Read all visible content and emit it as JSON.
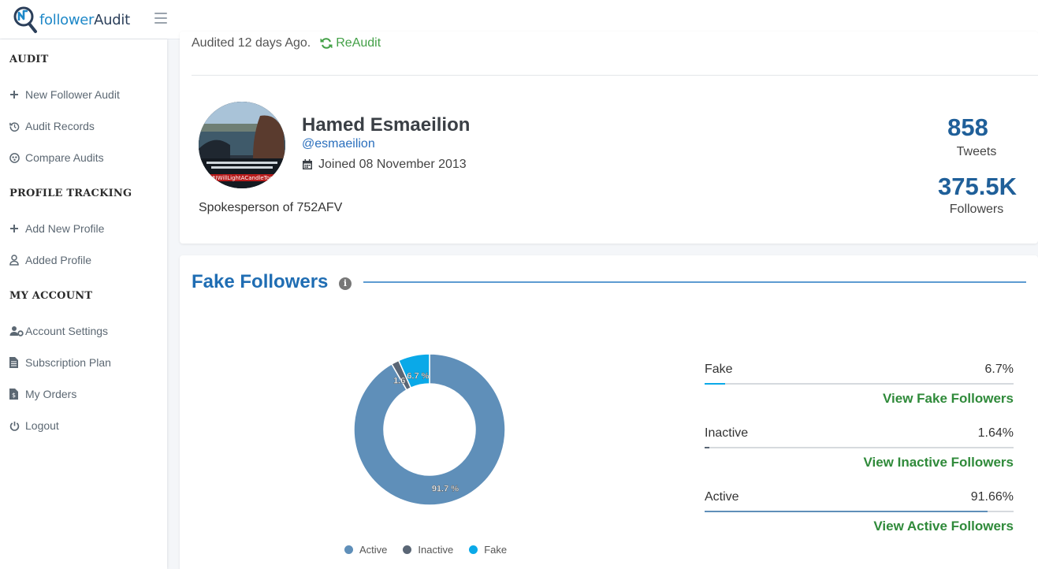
{
  "header": {
    "logo_part1": "follower",
    "logo_part2": "Audit"
  },
  "sidebar": {
    "sections": [
      {
        "heading": "AUDIT",
        "items": [
          {
            "label": "New Follower Audit",
            "icon": "plus-icon"
          },
          {
            "label": "Audit Records",
            "icon": "history-icon"
          },
          {
            "label": "Compare Audits",
            "icon": "compare-icon"
          }
        ]
      },
      {
        "heading": "PROFILE TRACKING",
        "items": [
          {
            "label": "Add New Profile",
            "icon": "plus-icon"
          },
          {
            "label": "Added Profile",
            "icon": "user-icon"
          }
        ]
      },
      {
        "heading": "MY ACCOUNT",
        "items": [
          {
            "label": "Account Settings",
            "icon": "user-gear-icon"
          },
          {
            "label": "Subscription Plan",
            "icon": "document-icon"
          },
          {
            "label": "My Orders",
            "icon": "receipt-icon"
          },
          {
            "label": "Logout",
            "icon": "power-icon"
          }
        ]
      }
    ]
  },
  "audit_status": {
    "text": "Audited 12 days Ago.",
    "reaudit_label": "ReAudit"
  },
  "profile": {
    "name": "Hamed Esmaeilion",
    "handle": "@esmaeilion",
    "joined": "Joined 08 November 2013",
    "bio": "Spokesperson of 752AFV",
    "avatar_caption": "#IWillLightACandleToo",
    "tweets_value": "858",
    "tweets_label": "Tweets",
    "followers_value": "375.5K",
    "followers_label": "Followers"
  },
  "fake_followers": {
    "title": "Fake Followers",
    "info_glyph": "i",
    "metrics": [
      {
        "label": "Fake",
        "value": "6.7%",
        "link": "View Fake Followers",
        "fraction": 0.067,
        "color": "#0aa9e8"
      },
      {
        "label": "Inactive",
        "value": "1.64%",
        "link": "View Inactive Followers",
        "fraction": 0.0164,
        "color": "#5a6675"
      },
      {
        "label": "Active",
        "value": "91.66%",
        "link": "View Active Followers",
        "fraction": 0.9166,
        "color": "#5f8fb9"
      }
    ]
  },
  "chart_data": {
    "type": "pie",
    "donut": true,
    "title": "",
    "categories": [
      "Active",
      "Inactive",
      "Fake"
    ],
    "values": [
      91.66,
      1.64,
      6.7
    ],
    "data_labels": [
      "91.7 %",
      "1.6 %",
      "6.7 %"
    ],
    "colors": [
      "#5f8fb9",
      "#5a6675",
      "#0aa9e8"
    ],
    "legend": "bottom"
  }
}
